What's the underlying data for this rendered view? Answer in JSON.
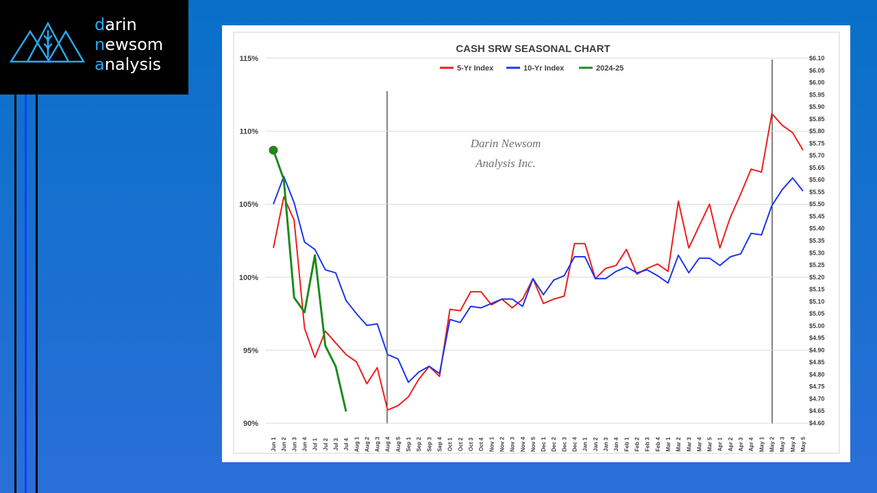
{
  "logo": {
    "lines": [
      "darin",
      "newsom",
      "analysis"
    ]
  },
  "chart_data": {
    "type": "line",
    "title": "CASH SRW SEASONAL CHART",
    "watermark": [
      "Darin Newsom",
      "Analysis Inc."
    ],
    "categories": [
      "Jun 1",
      "Jun 2",
      "Jun 3",
      "Jun 4",
      "Jul 1",
      "Jul 2",
      "Jul 3",
      "Jul 4",
      "Aug 1",
      "Aug 2",
      "Aug 3",
      "Aug 4",
      "Aug 5",
      "Sep 1",
      "Sep 2",
      "Sep 3",
      "Sep 4",
      "Oct 1",
      "Oct 2",
      "Oct 3",
      "Oct 4",
      "Nov 1",
      "Nov 2",
      "Nov 3",
      "Nov 4",
      "Nov 5",
      "Dec 1",
      "Dec 2",
      "Dec 3",
      "Dec 4",
      "Jan 1",
      "Jan 2",
      "Jan 3",
      "Jan 4",
      "Feb 1",
      "Feb 2",
      "Feb 3",
      "Feb 4",
      "Mar 1",
      "Mar 2",
      "Mar 3",
      "Mar 4",
      "Mar 5",
      "Apr 1",
      "Apr 2",
      "Apr 3",
      "Apr 4",
      "May 1",
      "May 2",
      "May 3",
      "May 4",
      "May 5"
    ],
    "series": [
      {
        "name": "5-Yr Index",
        "color": "#ee1c1c",
        "values": [
          102.0,
          105.5,
          103.9,
          96.5,
          94.5,
          96.3,
          95.5,
          94.7,
          94.2,
          92.7,
          93.8,
          90.9,
          91.2,
          91.8,
          93.0,
          93.9,
          93.2,
          97.8,
          97.7,
          99.0,
          99.0,
          98.1,
          98.5,
          97.9,
          98.5,
          99.9,
          98.2,
          98.5,
          98.7,
          102.3,
          102.3,
          99.9,
          100.6,
          100.8,
          101.9,
          100.2,
          100.6,
          100.9,
          100.4,
          105.2,
          102.0,
          103.5,
          105.0,
          102.0,
          104.1,
          105.7,
          107.4,
          107.2,
          111.2,
          110.4,
          109.9,
          108.7
        ]
      },
      {
        "name": "10-Yr Index",
        "color": "#1a35e8",
        "values": [
          105.0,
          106.9,
          105.1,
          102.4,
          101.9,
          100.5,
          100.3,
          98.4,
          97.5,
          96.7,
          96.8,
          94.7,
          94.4,
          92.8,
          93.5,
          93.9,
          93.4,
          97.1,
          96.9,
          98.0,
          97.9,
          98.2,
          98.5,
          98.5,
          98.0,
          99.9,
          98.8,
          99.8,
          100.1,
          101.4,
          101.4,
          99.9,
          99.9,
          100.4,
          100.7,
          100.3,
          100.5,
          100.1,
          99.6,
          101.5,
          100.3,
          101.3,
          101.3,
          100.8,
          101.4,
          101.6,
          103.0,
          102.9,
          104.9,
          106.0,
          106.8,
          105.9
        ]
      },
      {
        "name": "2024-25",
        "color": "#1a8a1a",
        "start_marker": true,
        "values": [
          108.7,
          106.7,
          98.6,
          97.6,
          101.5,
          95.3,
          93.9,
          90.8,
          null,
          null,
          null,
          null,
          null,
          null,
          null,
          null,
          null,
          null,
          null,
          null,
          null,
          null,
          null,
          null,
          null,
          null,
          null,
          null,
          null,
          null,
          null,
          null,
          null,
          null,
          null,
          null,
          null,
          null,
          null,
          null,
          null,
          null,
          null,
          null,
          null,
          null,
          null,
          null,
          null,
          null,
          null,
          null
        ]
      }
    ],
    "ylim": [
      90,
      115
    ],
    "yticks": [
      {
        "value": 90,
        "label": "90%"
      },
      {
        "value": 95,
        "label": "95%"
      },
      {
        "value": 100,
        "label": "100%"
      },
      {
        "value": 105,
        "label": "105%"
      },
      {
        "value": 110,
        "label": "110%"
      },
      {
        "value": 115,
        "label": "115%"
      }
    ],
    "y2lim": [
      4.6,
      6.1
    ],
    "y2ticks": [
      {
        "value": 4.6,
        "label": "$4.60"
      },
      {
        "value": 4.65,
        "label": "$4.65"
      },
      {
        "value": 4.7,
        "label": "$4.70"
      },
      {
        "value": 4.75,
        "label": "$4.75"
      },
      {
        "value": 4.8,
        "label": "$4.80"
      },
      {
        "value": 4.85,
        "label": "$4.85"
      },
      {
        "value": 4.9,
        "label": "$4.90"
      },
      {
        "value": 4.95,
        "label": "$4.95"
      },
      {
        "value": 5.0,
        "label": "$5.00"
      },
      {
        "value": 5.05,
        "label": "$5.05"
      },
      {
        "value": 5.1,
        "label": "$5.10"
      },
      {
        "value": 5.15,
        "label": "$5.15"
      },
      {
        "value": 5.2,
        "label": "$5.20"
      },
      {
        "value": 5.25,
        "label": "$5.25"
      },
      {
        "value": 5.3,
        "label": "$5.30"
      },
      {
        "value": 5.35,
        "label": "$5.35"
      },
      {
        "value": 5.4,
        "label": "$5.40"
      },
      {
        "value": 5.45,
        "label": "$5.45"
      },
      {
        "value": 5.5,
        "label": "$5.50"
      },
      {
        "value": 5.55,
        "label": "$5.55"
      },
      {
        "value": 5.6,
        "label": "$5.60"
      },
      {
        "value": 5.65,
        "label": "$5.65"
      },
      {
        "value": 5.7,
        "label": "$5.70"
      },
      {
        "value": 5.75,
        "label": "$5.75"
      },
      {
        "value": 5.8,
        "label": "$5.80"
      },
      {
        "value": 5.85,
        "label": "$5.85"
      },
      {
        "value": 5.9,
        "label": "$5.90"
      },
      {
        "value": 5.95,
        "label": "$5.95"
      },
      {
        "value": 6.0,
        "label": "$6.00"
      },
      {
        "value": 6.05,
        "label": "$6.05"
      },
      {
        "value": 6.1,
        "label": "$6.10"
      }
    ],
    "grid": true,
    "legend": "top"
  }
}
